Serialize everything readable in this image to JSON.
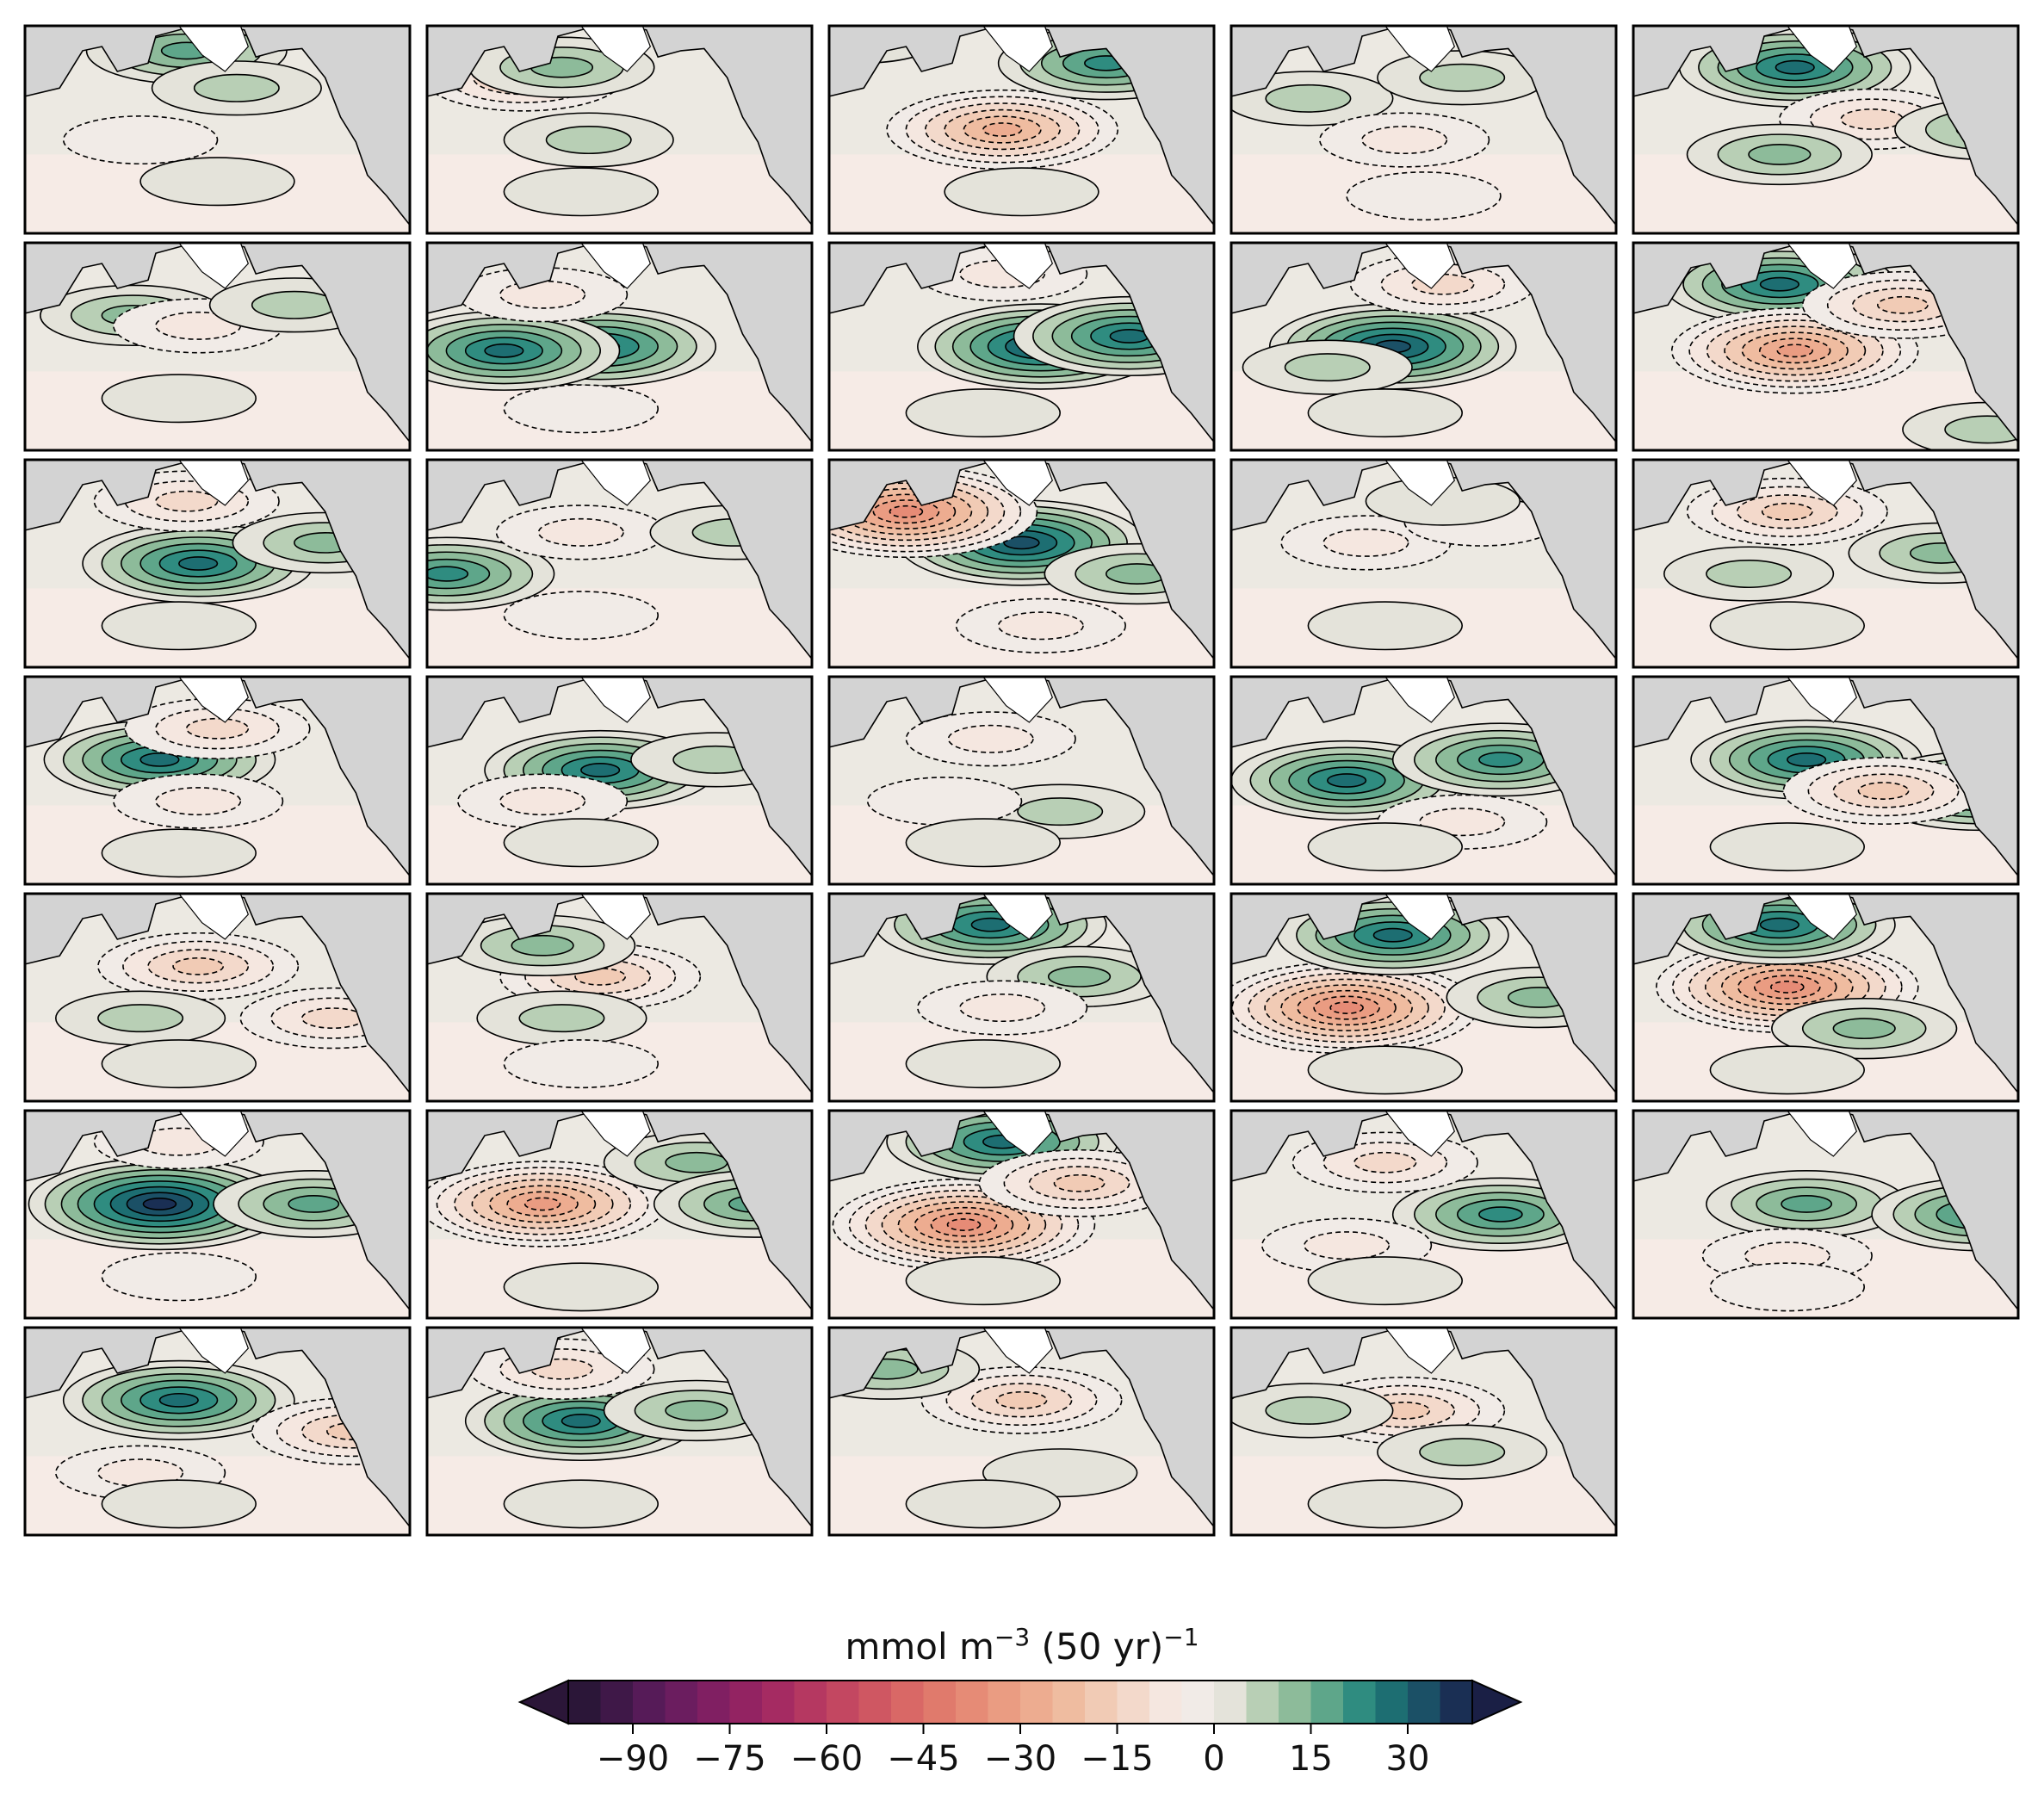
{
  "chart_data": {
    "type": "heatmap",
    "description_note": "",
    "panel_grid": {
      "rows": 7,
      "cols": 5,
      "count": 34
    },
    "panels": [
      {
        "index": 1,
        "features": [
          [
            "b",
            0.42,
            0.12,
            22
          ],
          [
            "b",
            0.55,
            0.3,
            12
          ],
          [
            "r",
            0.3,
            0.55,
            -6
          ],
          [
            "g",
            0.5,
            0.75,
            3
          ]
        ]
      },
      {
        "index": 2,
        "features": [
          [
            "r",
            0.25,
            0.25,
            -22
          ],
          [
            "b",
            0.35,
            0.2,
            14
          ],
          [
            "b",
            0.42,
            0.55,
            8
          ],
          [
            "g",
            0.4,
            0.8,
            3
          ]
        ]
      },
      {
        "index": 3,
        "features": [
          [
            "r",
            0.45,
            0.5,
            -30
          ],
          [
            "b",
            0.72,
            0.18,
            26
          ],
          [
            "b",
            0.08,
            0.05,
            8
          ],
          [
            "g",
            0.5,
            0.8,
            3
          ]
        ]
      },
      {
        "index": 4,
        "features": [
          [
            "b",
            0.2,
            0.35,
            12
          ],
          [
            "b",
            0.6,
            0.25,
            10
          ],
          [
            "r",
            0.45,
            0.55,
            -8
          ],
          [
            "g",
            0.5,
            0.82,
            -3
          ]
        ]
      },
      {
        "index": 5,
        "features": [
          [
            "b",
            0.42,
            0.2,
            28
          ],
          [
            "r",
            0.62,
            0.45,
            -15
          ],
          [
            "b",
            0.38,
            0.62,
            15
          ],
          [
            "b",
            0.92,
            0.5,
            16
          ]
        ]
      },
      {
        "index": 6,
        "features": [
          [
            "b",
            0.28,
            0.35,
            16
          ],
          [
            "r",
            0.45,
            0.4,
            -10
          ],
          [
            "b",
            0.7,
            0.3,
            10
          ],
          [
            "g",
            0.4,
            0.75,
            3
          ]
        ]
      },
      {
        "index": 7,
        "features": [
          [
            "b",
            0.45,
            0.5,
            30
          ],
          [
            "b",
            0.2,
            0.52,
            30
          ],
          [
            "r",
            0.3,
            0.25,
            -12
          ],
          [
            "g",
            0.4,
            0.8,
            -3
          ]
        ]
      },
      {
        "index": 8,
        "features": [
          [
            "b",
            0.55,
            0.5,
            34
          ],
          [
            "b",
            0.78,
            0.45,
            28
          ],
          [
            "r",
            0.45,
            0.15,
            -8
          ],
          [
            "g",
            0.4,
            0.82,
            3
          ]
        ]
      },
      {
        "index": 9,
        "features": [
          [
            "b",
            0.42,
            0.5,
            34
          ],
          [
            "r",
            0.55,
            0.2,
            -16
          ],
          [
            "b",
            0.25,
            0.6,
            12
          ],
          [
            "g",
            0.4,
            0.82,
            3
          ]
        ]
      },
      {
        "index": 10,
        "features": [
          [
            "b",
            0.38,
            0.2,
            28
          ],
          [
            "r",
            0.42,
            0.52,
            -35
          ],
          [
            "r",
            0.7,
            0.3,
            -20
          ],
          [
            "b",
            0.92,
            0.9,
            12
          ]
        ]
      },
      {
        "index": 11,
        "features": [
          [
            "b",
            0.45,
            0.5,
            30
          ],
          [
            "r",
            0.42,
            0.2,
            -16
          ],
          [
            "b",
            0.78,
            0.4,
            16
          ],
          [
            "g",
            0.4,
            0.8,
            3
          ]
        ]
      },
      {
        "index": 12,
        "features": [
          [
            "b",
            0.05,
            0.55,
            24
          ],
          [
            "r",
            0.4,
            0.35,
            -10
          ],
          [
            "b",
            0.8,
            0.35,
            10
          ],
          [
            "g",
            0.4,
            0.75,
            -3
          ]
        ]
      },
      {
        "index": 13,
        "features": [
          [
            "b",
            0.5,
            0.4,
            36
          ],
          [
            "r",
            0.2,
            0.25,
            -70
          ],
          [
            "b",
            0.8,
            0.55,
            16
          ],
          [
            "r",
            0.55,
            0.8,
            -12
          ]
        ]
      },
      {
        "index": 14,
        "features": [
          [
            "r",
            0.35,
            0.4,
            -12
          ],
          [
            "r",
            0.65,
            0.3,
            -6
          ],
          [
            "b",
            0.55,
            0.2,
            6
          ],
          [
            "g",
            0.4,
            0.8,
            3
          ]
        ]
      },
      {
        "index": 15,
        "features": [
          [
            "r",
            0.4,
            0.25,
            -22
          ],
          [
            "b",
            0.8,
            0.45,
            14
          ],
          [
            "b",
            0.3,
            0.55,
            8
          ],
          [
            "g",
            0.4,
            0.8,
            3
          ]
        ]
      },
      {
        "index": 16,
        "features": [
          [
            "b",
            0.35,
            0.4,
            32
          ],
          [
            "r",
            0.5,
            0.25,
            -14
          ],
          [
            "r",
            0.45,
            0.6,
            -8
          ],
          [
            "g",
            0.4,
            0.85,
            3
          ]
        ]
      },
      {
        "index": 17,
        "features": [
          [
            "b",
            0.45,
            0.45,
            30
          ],
          [
            "r",
            0.3,
            0.6,
            -12
          ],
          [
            "b",
            0.75,
            0.4,
            8
          ],
          [
            "g",
            0.4,
            0.8,
            3
          ]
        ]
      },
      {
        "index": 18,
        "features": [
          [
            "r",
            0.42,
            0.3,
            -12
          ],
          [
            "b",
            0.6,
            0.65,
            10
          ],
          [
            "r",
            0.3,
            0.6,
            -6
          ],
          [
            "g",
            0.4,
            0.8,
            3
          ]
        ]
      },
      {
        "index": 19,
        "features": [
          [
            "b",
            0.3,
            0.5,
            30
          ],
          [
            "b",
            0.7,
            0.4,
            24
          ],
          [
            "r",
            0.6,
            0.7,
            -8
          ],
          [
            "g",
            0.4,
            0.82,
            3
          ]
        ]
      },
      {
        "index": 20,
        "features": [
          [
            "b",
            0.45,
            0.4,
            32
          ],
          [
            "b",
            0.9,
            0.55,
            28
          ],
          [
            "r",
            0.65,
            0.55,
            -18
          ],
          [
            "g",
            0.4,
            0.82,
            3
          ]
        ]
      },
      {
        "index": 21,
        "features": [
          [
            "r",
            0.45,
            0.35,
            -22
          ],
          [
            "r",
            0.8,
            0.6,
            -14
          ],
          [
            "b",
            0.3,
            0.6,
            8
          ],
          [
            "g",
            0.4,
            0.82,
            3
          ]
        ]
      },
      {
        "index": 22,
        "features": [
          [
            "r",
            0.45,
            0.4,
            -22
          ],
          [
            "b",
            0.3,
            0.25,
            16
          ],
          [
            "b",
            0.35,
            0.6,
            8
          ],
          [
            "g",
            0.4,
            0.82,
            -3
          ]
        ]
      },
      {
        "index": 23,
        "features": [
          [
            "b",
            0.42,
            0.15,
            32
          ],
          [
            "b",
            0.65,
            0.4,
            14
          ],
          [
            "r",
            0.45,
            0.55,
            -10
          ],
          [
            "g",
            0.4,
            0.82,
            3
          ]
        ]
      },
      {
        "index": 24,
        "features": [
          [
            "r",
            0.3,
            0.55,
            -60
          ],
          [
            "b",
            0.42,
            0.2,
            28
          ],
          [
            "b",
            0.8,
            0.5,
            16
          ],
          [
            "g",
            0.4,
            0.85,
            3
          ]
        ]
      },
      {
        "index": 25,
        "features": [
          [
            "r",
            0.4,
            0.45,
            -45
          ],
          [
            "b",
            0.38,
            0.15,
            28
          ],
          [
            "b",
            0.6,
            0.65,
            14
          ],
          [
            "g",
            0.4,
            0.85,
            3
          ]
        ]
      },
      {
        "index": 26,
        "features": [
          [
            "b",
            0.35,
            0.45,
            40
          ],
          [
            "b",
            0.75,
            0.45,
            20
          ],
          [
            "r",
            0.4,
            0.15,
            -12
          ],
          [
            "g",
            0.4,
            0.8,
            -3
          ]
        ]
      },
      {
        "index": 27,
        "features": [
          [
            "r",
            0.3,
            0.45,
            -35
          ],
          [
            "b",
            0.7,
            0.25,
            16
          ],
          [
            "b",
            0.85,
            0.45,
            20
          ],
          [
            "g",
            0.4,
            0.85,
            3
          ]
        ]
      },
      {
        "index": 28,
        "features": [
          [
            "r",
            0.35,
            0.55,
            -40
          ],
          [
            "b",
            0.45,
            0.15,
            28
          ],
          [
            "r",
            0.65,
            0.35,
            -18
          ],
          [
            "g",
            0.4,
            0.82,
            3
          ]
        ]
      },
      {
        "index": 29,
        "features": [
          [
            "b",
            0.7,
            0.5,
            24
          ],
          [
            "r",
            0.4,
            0.25,
            -14
          ],
          [
            "r",
            0.3,
            0.65,
            -8
          ],
          [
            "g",
            0.4,
            0.82,
            3
          ]
        ]
      },
      {
        "index": 30,
        "features": [
          [
            "b",
            0.45,
            0.45,
            22
          ],
          [
            "b",
            0.9,
            0.5,
            26
          ],
          [
            "r",
            0.4,
            0.7,
            -10
          ],
          [
            "g",
            0.4,
            0.85,
            -3
          ]
        ]
      },
      {
        "index": 31,
        "features": [
          [
            "b",
            0.4,
            0.35,
            32
          ],
          [
            "r",
            0.85,
            0.5,
            -22
          ],
          [
            "r",
            0.3,
            0.7,
            -8
          ],
          [
            "g",
            0.4,
            0.85,
            3
          ]
        ]
      },
      {
        "index": 32,
        "features": [
          [
            "b",
            0.4,
            0.45,
            32
          ],
          [
            "r",
            0.35,
            0.2,
            -14
          ],
          [
            "b",
            0.7,
            0.4,
            14
          ],
          [
            "g",
            0.4,
            0.85,
            3
          ]
        ]
      },
      {
        "index": 33,
        "features": [
          [
            "r",
            0.5,
            0.35,
            -20
          ],
          [
            "b",
            0.15,
            0.2,
            14
          ],
          [
            "b",
            0.6,
            0.7,
            6
          ],
          [
            "g",
            0.4,
            0.85,
            3
          ]
        ]
      },
      {
        "index": 34,
        "features": [
          [
            "r",
            0.45,
            0.4,
            -22
          ],
          [
            "b",
            0.2,
            0.4,
            12
          ],
          [
            "b",
            0.6,
            0.6,
            8
          ],
          [
            "g",
            0.4,
            0.85,
            3
          ]
        ]
      }
    ],
    "colorbar": {
      "label_prefix": "mmol m",
      "label_exp1": "−3",
      "label_mid": " (50 yr)",
      "label_exp2": "−1",
      "ticks": [
        -90,
        -75,
        -60,
        -45,
        -30,
        -15,
        0,
        15,
        30
      ],
      "tick_labels": [
        "−90",
        "−75",
        "−60",
        "−45",
        "−30",
        "−15",
        "0",
        "15",
        "30"
      ],
      "range": [
        -100,
        40
      ],
      "step": 5,
      "extend": "both",
      "levels_colors": [
        "#2b1638",
        "#3f1848",
        "#561b58",
        "#6b1d5f",
        "#801f62",
        "#932362",
        "#a52b62",
        "#b53861",
        "#c34761",
        "#cf5762",
        "#d96866",
        "#e07a6c",
        "#e68b76",
        "#ea9c82",
        "#edac90",
        "#efbca0",
        "#f1cbb5",
        "#f3d9cb",
        "#f5e7e0",
        "#f1ebe7",
        "#e4e3da",
        "#b8cfb5",
        "#8dbb9a",
        "#5ea68a",
        "#2f8c80",
        "#1d6e72",
        "#1b5066",
        "#1a2f54"
      ],
      "under_color": "#2b1638",
      "over_color": "#1a1f45"
    },
    "colors": {
      "land": "#d3d3d3",
      "ice": "#ffffff",
      "panel_border": "#000000",
      "contour": "#000000"
    }
  }
}
